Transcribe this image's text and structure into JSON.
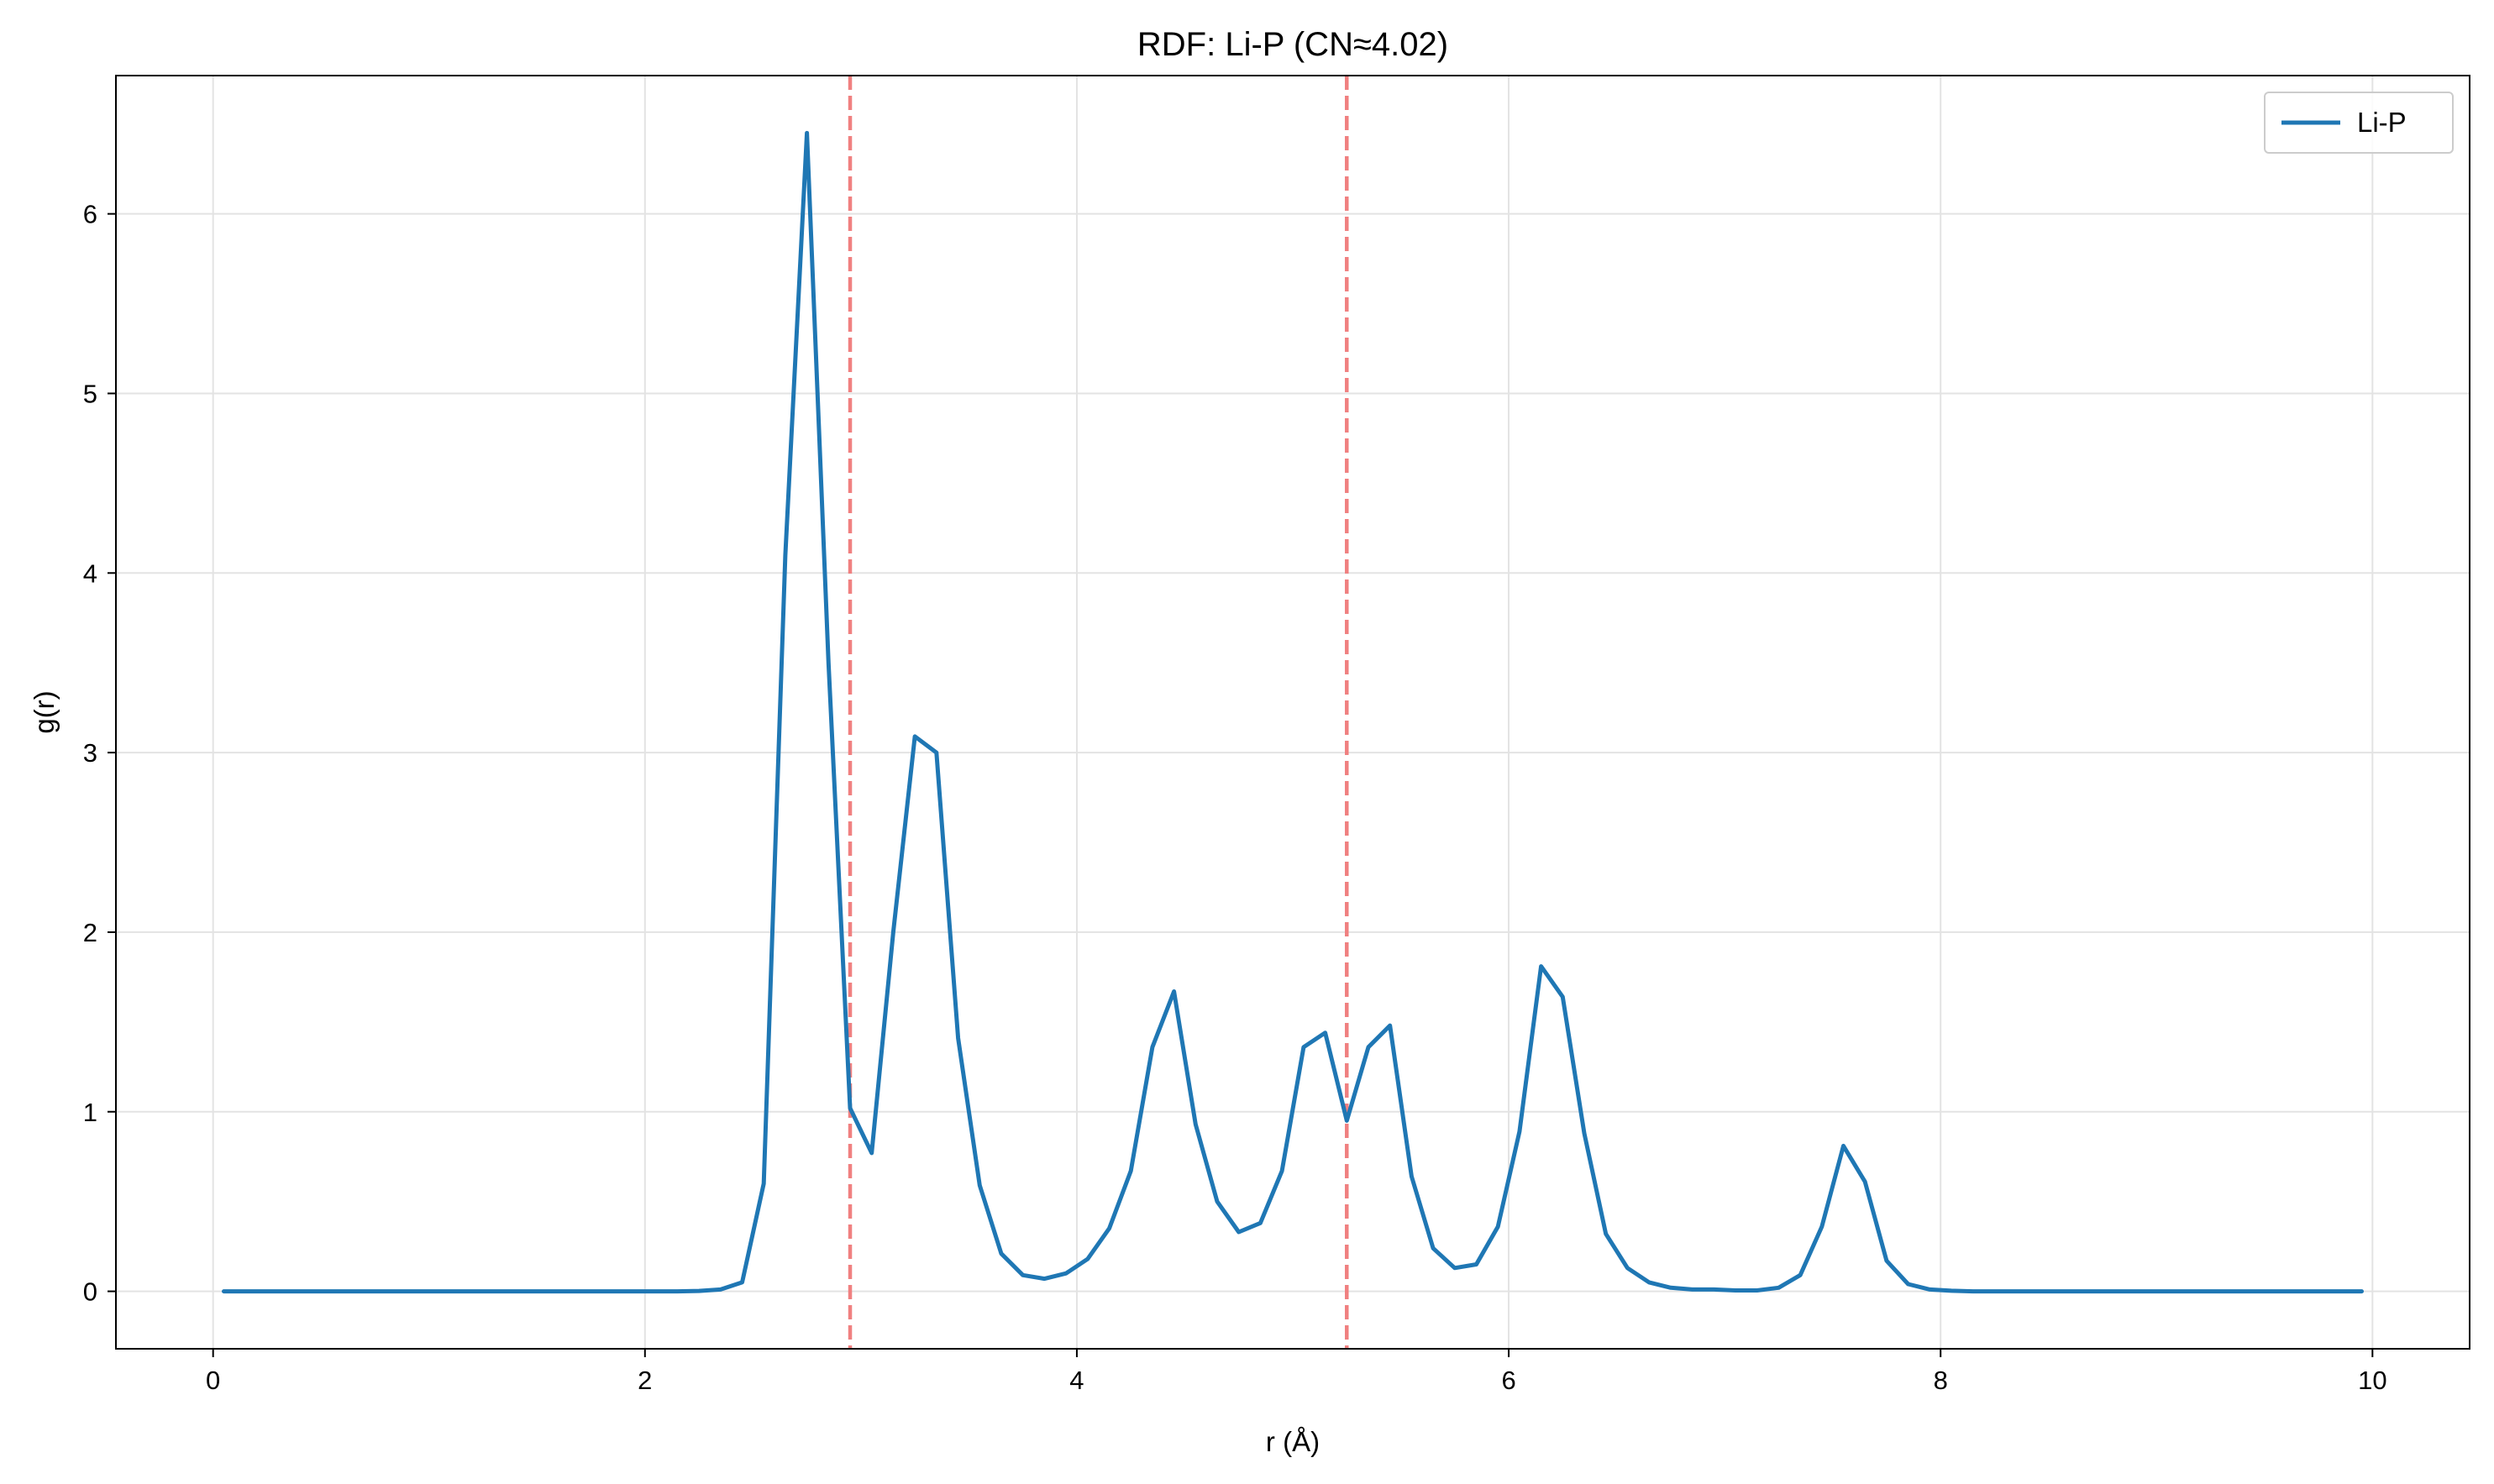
{
  "chart_data": {
    "type": "line",
    "title": "RDF: Li-P (CN≈4.02)",
    "xlabel": "r (Å)",
    "ylabel": "g(r)",
    "xlim": [
      -0.45,
      10.45
    ],
    "ylim": [
      -0.32,
      6.77
    ],
    "xticks": [
      0,
      2,
      4,
      6,
      8,
      10
    ],
    "yticks": [
      0,
      1,
      2,
      3,
      4,
      5,
      6
    ],
    "grid": true,
    "legend": {
      "position": "top-right",
      "entries": [
        "Li-P"
      ]
    },
    "vlines": [
      {
        "x": 2.95,
        "color": "#f08080",
        "style": "dashed"
      },
      {
        "x": 5.25,
        "color": "#f08080",
        "style": "dashed"
      }
    ],
    "series": [
      {
        "name": "Li-P",
        "color": "#1f77b4",
        "x": [
          0.05,
          0.15,
          0.25,
          0.35,
          0.45,
          0.55,
          0.65,
          0.75,
          0.85,
          0.95,
          1.05,
          1.15,
          1.25,
          1.35,
          1.45,
          1.55,
          1.65,
          1.75,
          1.85,
          1.95,
          2.05,
          2.15,
          2.25,
          2.35,
          2.45,
          2.55,
          2.65,
          2.75,
          2.85,
          2.95,
          3.05,
          3.15,
          3.25,
          3.35,
          3.45,
          3.55,
          3.65,
          3.75,
          3.85,
          3.95,
          4.05,
          4.15,
          4.25,
          4.35,
          4.45,
          4.55,
          4.65,
          4.75,
          4.85,
          4.95,
          5.05,
          5.15,
          5.25,
          5.35,
          5.45,
          5.55,
          5.65,
          5.75,
          5.85,
          5.95,
          6.05,
          6.15,
          6.25,
          6.35,
          6.45,
          6.55,
          6.65,
          6.75,
          6.85,
          6.95,
          7.05,
          7.15,
          7.25,
          7.35,
          7.45,
          7.55,
          7.65,
          7.75,
          7.85,
          7.95,
          8.05,
          8.15,
          8.25,
          8.35,
          8.45,
          8.55,
          8.65,
          8.75,
          8.85,
          8.95,
          9.05,
          9.15,
          9.25,
          9.35,
          9.45,
          9.55,
          9.65,
          9.75,
          9.85,
          9.95
        ],
        "values": [
          0,
          0,
          0,
          0,
          0,
          0,
          0,
          0,
          0,
          0,
          0,
          0,
          0,
          0,
          0,
          0,
          0,
          0,
          0,
          0,
          0,
          0,
          0.002,
          0.01,
          0.05,
          0.6,
          4.1,
          6.45,
          3.5,
          1.02,
          0.77,
          2.0,
          3.09,
          3.0,
          1.41,
          0.59,
          0.21,
          0.09,
          0.07,
          0.1,
          0.18,
          0.35,
          0.67,
          1.36,
          1.67,
          0.93,
          0.5,
          0.33,
          0.38,
          0.67,
          1.36,
          1.44,
          0.95,
          1.36,
          1.48,
          0.64,
          0.24,
          0.13,
          0.15,
          0.36,
          0.89,
          1.81,
          1.64,
          0.88,
          0.32,
          0.13,
          0.05,
          0.02,
          0.01,
          0.01,
          0.005,
          0.005,
          0.02,
          0.09,
          0.36,
          0.81,
          0.61,
          0.17,
          0.04,
          0.01,
          0.003,
          0,
          0,
          0,
          0,
          0,
          0,
          0,
          0,
          0,
          0,
          0,
          0,
          0,
          0,
          0,
          0,
          0,
          0,
          0
        ]
      }
    ]
  }
}
